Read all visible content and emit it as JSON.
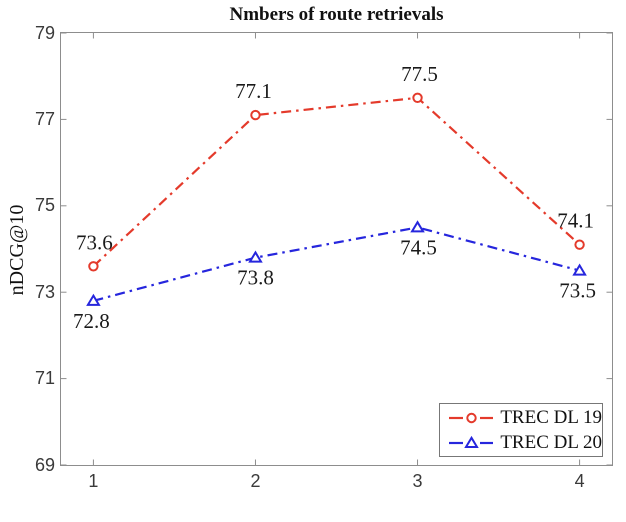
{
  "chart_data": {
    "type": "line",
    "title": "Nmbers of route retrievals",
    "ylabel": "nDCG@10",
    "xlabel": "",
    "x": [
      1,
      2,
      3,
      4
    ],
    "xticks": [
      1,
      2,
      3,
      4
    ],
    "yticks": [
      69,
      71,
      73,
      75,
      77,
      79
    ],
    "xlim": [
      0.8,
      4.2
    ],
    "ylim": [
      69,
      79
    ],
    "grid": false,
    "line_style": "dash-dot",
    "legend_position": "bottom-right",
    "axis_color": "#8d8d8d",
    "series": [
      {
        "name": "TREC DL 19",
        "color": "#e43a2b",
        "marker": "circle",
        "values": [
          73.6,
          77.1,
          77.5,
          74.1
        ],
        "labels": [
          "73.6",
          "77.1",
          "77.5",
          "74.1"
        ],
        "label_side": "above",
        "label_dx": [
          1,
          -2,
          2,
          -4
        ]
      },
      {
        "name": "TREC DL 20",
        "color": "#2626dd",
        "marker": "triangle",
        "values": [
          72.8,
          73.8,
          74.5,
          73.5
        ],
        "labels": [
          "72.8",
          "73.8",
          "74.5",
          "73.5"
        ],
        "label_side": "below",
        "label_dx": [
          -2,
          0,
          1,
          -2
        ]
      }
    ]
  }
}
